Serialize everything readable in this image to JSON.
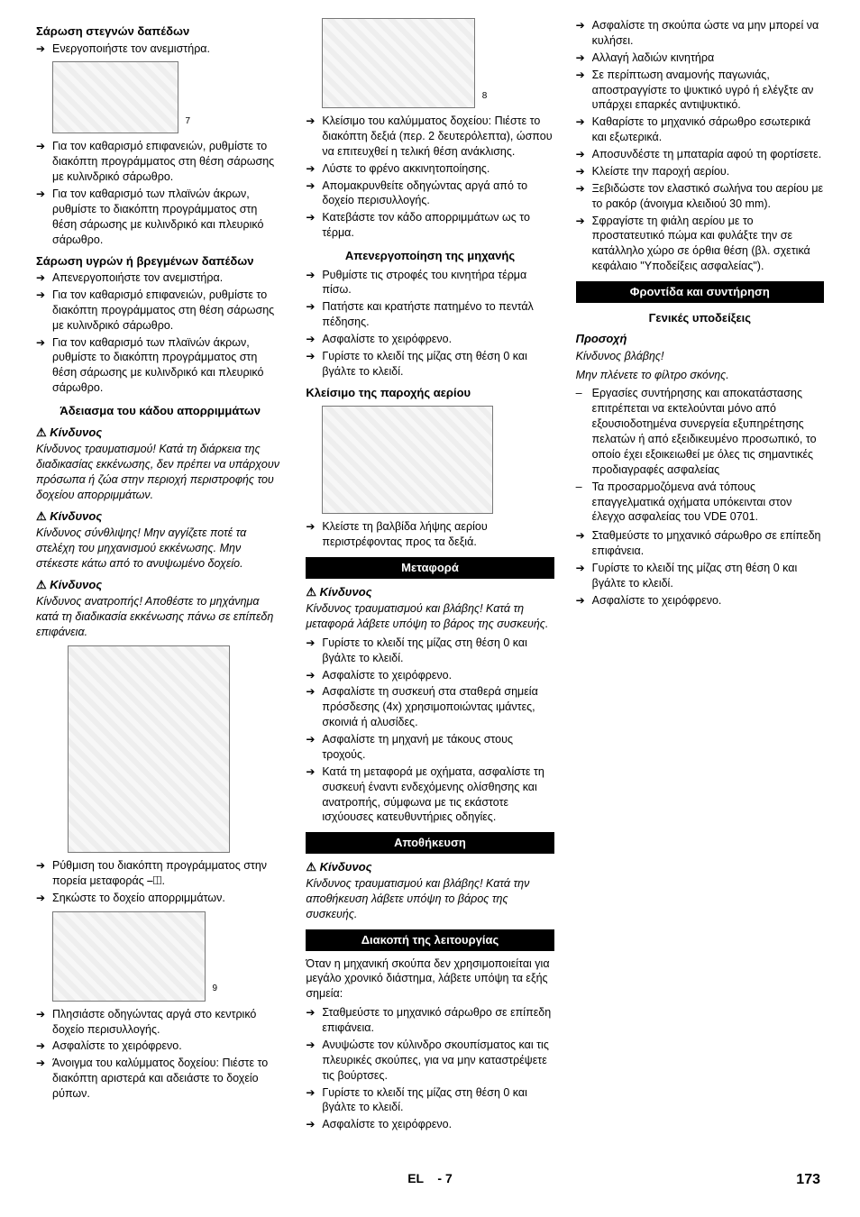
{
  "col1": {
    "h1": "Σάρωση στεγνών δαπέδων",
    "l1": [
      "Ενεργοποιήστε τον ανεμιστήρα."
    ],
    "img1_label": "7",
    "l2": [
      "Για τον καθαρισμό επιφανειών, ρυθμίστε το διακόπτη προγράμματος στη θέση σάρωσης με κυλινδρικό σάρωθρο.",
      "Για τον καθαρισμό των πλαϊνών άκρων, ρυθμίστε το διακόπτη προγράμματος στη θέση σάρωσης με κυλινδρικό και πλευρικό σάρωθρο."
    ],
    "h2": "Σάρωση υγρών ή βρεγμένων δαπέδων",
    "l3": [
      "Απενεργοποιήστε τον ανεμιστήρα.",
      "Για τον καθαρισμό επιφανειών, ρυθμίστε το διακόπτη προγράμματος στη θέση σάρωσης με κυλινδρικό σάρωθρο.",
      "Για τον καθαρισμό των πλαϊνών άκρων, ρυθμίστε το διακόπτη προγράμματος στη θέση σάρωσης με κυλινδρικό και πλευρικό σάρωθρο."
    ],
    "h3": "Άδειασμα του κάδου απορριμμάτων",
    "d1": "Κίνδυνος",
    "d1t": "Κίνδυνος τραυματισμού! Κατά τη διάρκεια της διαδικασίας εκκένωσης, δεν πρέπει να υπάρχουν πρόσωπα ή ζώα στην περιοχή περιστροφής του δοχείου απορριμμάτων.",
    "d2": "Κίνδυνος",
    "d2t": "Κίνδυνος σύνθλιψης! Μην αγγίζετε ποτέ τα στελέχη του μηχανισμού εκκένωσης. Μην στέκεστε κάτω από το ανυψωμένο δοχείο.",
    "d3": "Κίνδυνος",
    "d3t": "Κίνδυνος ανατροπής! Αποθέστε το μηχάνημα κατά τη διαδικασία εκκένωσης πάνω σε επίπεδη επιφάνεια.",
    "l4": [
      "Ρύθμιση του διακόπτη προγράμματος στην πορεία μεταφοράς ⎯◫.",
      "Σηκώστε το δοχείο απορριμμάτων."
    ]
  },
  "col2": {
    "img2_label": "9",
    "l5": [
      "Πλησιάστε οδηγώντας αργά στο κεντρικό δοχείο περισυλλογής.",
      "Ασφαλίστε το χειρόφρενο.",
      "Άνοιγμα του καλύμματος δοχείου: Πιέστε το διακόπτη αριστερά και αδειάστε το δοχείο ρύπων."
    ],
    "img3_label": "8",
    "l6": [
      "Κλείσιμο του καλύμματος δοχείου: Πιέστε το διακόπτη δεξιά (περ. 2 δευτερόλεπτα), ώσπου να επιτευχθεί η τελική θέση ανάκλισης.",
      "Λύστε το φρένο ακκινητοποίησης.",
      "Απομακρυνθείτε οδηγώντας αργά από το δοχείο περισυλλογής.",
      "Κατεβάστε τον κάδο απορριμμάτων ως το τέρμα."
    ],
    "h4": "Απενεργοποίηση της μηχανής",
    "l7": [
      "Ρυθμίστε τις στροφές του κινητήρα τέρμα πίσω.",
      "Πατήστε και κρατήστε πατημένο το πεντάλ πέδησης.",
      "Ασφαλίστε το χειρόφρενο.",
      "Γυρίστε το κλειδί της μίζας στη θέση 0 και βγάλτε το κλειδί."
    ],
    "h5": "Κλείσιμο της παροχής αερίου",
    "l8": [
      "Κλείστε τη βαλβίδα λήψης αερίου περιστρέφοντας προς τα δεξιά."
    ],
    "sec_transport": "Μεταφορά",
    "d4": "Κίνδυνος",
    "d4t": "Κίνδυνος τραυματισμού και βλάβης! Κατά τη μεταφορά λάβετε υπόψη το βάρος της συσκευής.",
    "l9": [
      "Γυρίστε το κλειδί της μίζας στη θέση 0 και βγάλτε το κλειδί.",
      "Ασφαλίστε το χειρόφρενο.",
      "Ασφαλίστε τη συσκευή στα σταθερά σημεία πρόσδεσης (4x) χρησιμοποιώντας ιμάντες, σκοινιά ή αλυσίδες.",
      "Ασφαλίστε τη μηχανή με τάκους στους τροχούς.",
      "Κατά τη μεταφορά με οχήματα, ασφαλίστε τη συσκευή έναντι ενδεχόμενης ολίσθησης και ανατροπής, σύμφωνα με τις εκάστοτε ισχύουσες κατευθυντήριες οδηγίες."
    ]
  },
  "col3": {
    "sec_storage": "Αποθήκευση",
    "d5": "Κίνδυνος",
    "d5t": "Κίνδυνος τραυματισμού και βλάβης! Κατά την αποθήκευση λάβετε υπόψη το βάρος της συσκευής.",
    "sec_shutdown": "Διακοπή της λειτουργίας",
    "p_shutdown": "Όταν η μηχανική σκούπα δεν χρησιμοποιείται για μεγάλο χρονικό διάστημα, λάβετε υπόψη τα εξής σημεία:",
    "l10": [
      "Σταθμεύστε το μηχανικό σάρωθρο σε επίπεδη επιφάνεια.",
      "Ανυψώστε τον κύλινδρο σκουπίσματος και τις πλευρικές σκούπες, για να μην καταστρέψετε τις βούρτσες.",
      "Γυρίστε το κλειδί της μίζας στη θέση 0 και βγάλτε το κλειδί.",
      "Ασφαλίστε το χειρόφρενο.",
      "Ασφαλίστε τη σκούπα ώστε να μην μπορεί να κυλήσει.",
      "Αλλαγή λαδιών κινητήρα",
      "Σε περίπτωση αναμονής παγωνιάς, αποστραγγίστε το ψυκτικό υγρό ή ελέγξτε αν υπάρχει επαρκές αντιψυκτικό.",
      "Καθαρίστε το μηχανικό σάρωθρο εσωτερικά και εξωτερικά.",
      "Αποσυνδέστε τη μπαταρία αφού τη φορτίσετε.",
      "Κλείστε την παροχή αερίου.",
      "Ξεβιδώστε τον ελαστικό σωλήνα του αερίου με το ρακόρ (άνοιγμα κλειδιού 30 mm).",
      "Σφραγίστε τη φιάλη αερίου με το προστατευτικό πώμα και φυλάξτε την σε κατάλληλο χώρο σε όρθια θέση (βλ. σχετικά κεφάλαιο \"Υποδείξεις ασφαλείας\")."
    ],
    "sec_maint": "Φροντίδα και συντήρηση",
    "sub_maint": "Γενικές υποδείξεις",
    "att": "Προσοχή",
    "att_t1": "Κίνδυνος βλάβης!",
    "att_t2": "Μην πλένετε το φίλτρο σκόνης.",
    "l11": [
      "Εργασίες συντήρησης και αποκατάστασης επιτρέπεται να εκτελούνται μόνο από εξουσιοδοτημένα συνεργεία εξυπηρέτησης πελατών ή από εξειδικευμένο προσωπικό, το οποίο έχει εξοικειωθεί με όλες τις σημαντικές προδιαγραφές ασφαλείας",
      "Τα προσαρμοζόμενα ανά τόπους επαγγελματικά οχήματα υπόκεινται στον έλεγχο ασφαλείας του VDE 0701."
    ],
    "l12": [
      "Σταθμεύστε το μηχανικό σάρωθρο σε επίπεδη επιφάνεια.",
      "Γυρίστε το κλειδί της μίζας στη θέση 0 και βγάλτε το κλειδί.",
      "Ασφαλίστε το χειρόφρενο."
    ]
  },
  "footer": {
    "lang": "EL",
    "sep": "-",
    "pg_small": "7",
    "pg_big": "173"
  }
}
